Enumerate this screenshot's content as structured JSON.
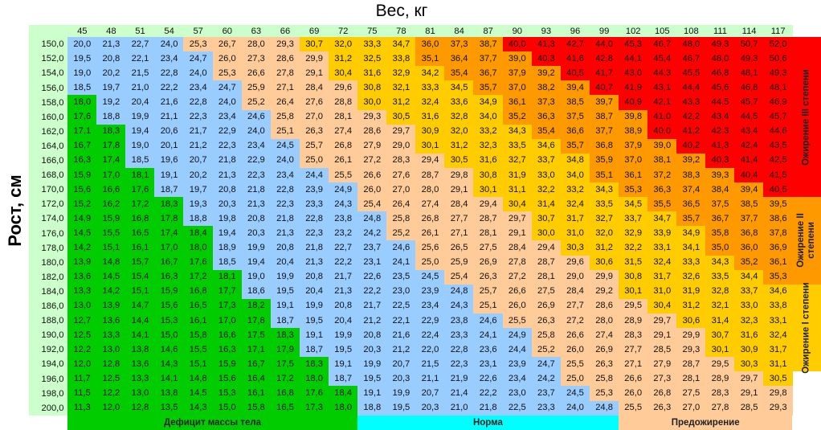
{
  "chart_data": {
    "type": "heatmap",
    "title": "",
    "xlabel": "Вес, кг",
    "ylabel": "Рост, см",
    "x": [
      "45",
      "48",
      "51",
      "54",
      "57",
      "60",
      "63",
      "66",
      "69",
      "72",
      "75",
      "78",
      "81",
      "84",
      "87",
      "90",
      "93",
      "96",
      "99",
      "102",
      "105",
      "108",
      "111",
      "114",
      "117"
    ],
    "y": [
      "150,0",
      "152,0",
      "154,0",
      "156,0",
      "158,0",
      "160,0",
      "162,0",
      "164,0",
      "166,0",
      "168,0",
      "170,0",
      "172,0",
      "174,0",
      "176,0",
      "178,0",
      "180,0",
      "182,0",
      "184,0",
      "186,0",
      "188,0",
      "190,0",
      "192,0",
      "194,0",
      "196,0",
      "198,0",
      "200,0"
    ],
    "values": [
      [
        "20,0",
        "21,3",
        "22,7",
        "24,0",
        "25,3",
        "26,7",
        "28,0",
        "29,3",
        "30,7",
        "32,0",
        "33,3",
        "34,7",
        "36,0",
        "37,3",
        "38,7",
        "40,0",
        "41,3",
        "42,7",
        "44,0",
        "45,3",
        "46,7",
        "48,0",
        "49,3",
        "50,7",
        "52,0"
      ],
      [
        "19,5",
        "20,8",
        "22,1",
        "23,4",
        "24,7",
        "26,0",
        "27,3",
        "28,6",
        "29,9",
        "31,2",
        "32,5",
        "33,8",
        "35,1",
        "36,4",
        "37,7",
        "39,0",
        "40,3",
        "41,6",
        "42,8",
        "44,1",
        "45,4",
        "46,7",
        "48,0",
        "49,3",
        "50,6"
      ],
      [
        "19,0",
        "20,2",
        "21,5",
        "22,8",
        "24,0",
        "25,3",
        "26,6",
        "27,8",
        "29,1",
        "30,4",
        "31,6",
        "32,9",
        "34,2",
        "35,4",
        "36,7",
        "37,9",
        "39,2",
        "40,5",
        "41,7",
        "43,0",
        "44,3",
        "45,5",
        "46,8",
        "48,1",
        "49,3"
      ],
      [
        "18,5",
        "19,7",
        "21,0",
        "22,2",
        "23,4",
        "24,7",
        "25,9",
        "27,1",
        "28,4",
        "29,6",
        "30,8",
        "32,1",
        "33,3",
        "34,5",
        "35,7",
        "37,0",
        "38,2",
        "39,4",
        "40,7",
        "41,9",
        "43,1",
        "44,4",
        "45,6",
        "46,8",
        "48,1"
      ],
      [
        "18,0",
        "19,2",
        "20,4",
        "21,6",
        "22,8",
        "24,0",
        "25,2",
        "26,4",
        "27,6",
        "28,8",
        "30,0",
        "31,2",
        "32,4",
        "33,6",
        "34,9",
        "36,1",
        "37,3",
        "38,5",
        "39,7",
        "40,9",
        "42,1",
        "43,3",
        "44,5",
        "45,7",
        "46,9"
      ],
      [
        "17,6",
        "18,8",
        "19,9",
        "21,1",
        "22,3",
        "23,4",
        "24,6",
        "25,8",
        "27,0",
        "28,1",
        "29,3",
        "30,5",
        "31,6",
        "32,8",
        "34,0",
        "35,2",
        "36,3",
        "37,5",
        "38,7",
        "39,8",
        "41,0",
        "42,2",
        "43,4",
        "44,5",
        "45,7"
      ],
      [
        "17,1",
        "18,3",
        "19,4",
        "20,6",
        "21,7",
        "22,9",
        "24,0",
        "25,1",
        "26,3",
        "27,4",
        "28,6",
        "29,7",
        "30,9",
        "32,0",
        "33,2",
        "34,3",
        "35,4",
        "36,6",
        "37,7",
        "38,9",
        "40,0",
        "41,2",
        "42,3",
        "43,4",
        "44,6"
      ],
      [
        "16,7",
        "17,8",
        "19,0",
        "20,1",
        "21,2",
        "22,3",
        "23,4",
        "24,5",
        "25,7",
        "26,8",
        "27,9",
        "29,0",
        "30,1",
        "31,2",
        "32,3",
        "33,5",
        "34,6",
        "35,7",
        "36,8",
        "37,9",
        "39,0",
        "40,2",
        "41,3",
        "42,4",
        "43,5"
      ],
      [
        "16,3",
        "17,4",
        "18,5",
        "19,6",
        "20,7",
        "21,8",
        "22,9",
        "24,0",
        "25,0",
        "26,1",
        "27,2",
        "28,3",
        "29,4",
        "30,5",
        "31,6",
        "32,7",
        "33,7",
        "34,8",
        "35,9",
        "37,0",
        "38,1",
        "39,2",
        "40,3",
        "41,4",
        "42,5"
      ],
      [
        "15,9",
        "17,0",
        "18,1",
        "19,1",
        "20,2",
        "21,3",
        "22,3",
        "23,4",
        "24,4",
        "25,5",
        "26,6",
        "27,6",
        "28,7",
        "29,8",
        "30,8",
        "31,9",
        "33,0",
        "34,0",
        "35,1",
        "36,1",
        "37,2",
        "38,3",
        "39,3",
        "40,4",
        "41,5"
      ],
      [
        "15,6",
        "16,6",
        "17,6",
        "18,7",
        "19,7",
        "20,8",
        "21,8",
        "22,8",
        "23,9",
        "24,9",
        "26,0",
        "27,0",
        "28,0",
        "29,1",
        "30,1",
        "31,1",
        "32,2",
        "33,2",
        "34,3",
        "35,3",
        "36,3",
        "37,4",
        "38,4",
        "39,4",
        "40,5"
      ],
      [
        "15,2",
        "16,2",
        "17,2",
        "18,3",
        "19,3",
        "20,3",
        "21,3",
        "22,3",
        "23,3",
        "24,3",
        "25,4",
        "26,4",
        "27,4",
        "28,4",
        "29,4",
        "30,4",
        "31,4",
        "32,4",
        "33,5",
        "34,5",
        "35,5",
        "36,5",
        "37,5",
        "38,5",
        "39,5"
      ],
      [
        "14,9",
        "15,9",
        "16,8",
        "17,8",
        "18,8",
        "19,8",
        "20,8",
        "21,8",
        "22,8",
        "23,8",
        "24,8",
        "25,8",
        "26,8",
        "27,7",
        "28,7",
        "29,7",
        "30,7",
        "31,7",
        "32,7",
        "33,7",
        "34,7",
        "35,7",
        "36,7",
        "37,7",
        "38,6"
      ],
      [
        "14,5",
        "15,5",
        "16,5",
        "17,4",
        "18,4",
        "19,4",
        "20,3",
        "21,3",
        "22,3",
        "23,2",
        "24,2",
        "25,2",
        "26,1",
        "27,1",
        "28,1",
        "29,1",
        "30,0",
        "31,0",
        "32,0",
        "32,9",
        "33,9",
        "34,9",
        "35,8",
        "36,8",
        "37,8"
      ],
      [
        "14,2",
        "15,1",
        "16,1",
        "17,0",
        "18,0",
        "18,9",
        "19,9",
        "20,8",
        "21,8",
        "22,7",
        "23,7",
        "24,6",
        "25,6",
        "26,5",
        "27,5",
        "28,4",
        "29,4",
        "30,3",
        "31,2",
        "32,2",
        "33,1",
        "34,1",
        "35,0",
        "36,0",
        "36,9"
      ],
      [
        "13,9",
        "14,8",
        "15,7",
        "16,7",
        "17,6",
        "18,5",
        "19,4",
        "20,4",
        "21,3",
        "22,2",
        "23,1",
        "24,1",
        "25,0",
        "25,9",
        "26,9",
        "27,8",
        "28,7",
        "29,6",
        "30,6",
        "31,5",
        "32,4",
        "33,3",
        "34,3",
        "35,2",
        "36,1"
      ],
      [
        "13,6",
        "14,5",
        "15,4",
        "16,3",
        "17,2",
        "18,1",
        "19,0",
        "19,9",
        "20,8",
        "21,7",
        "22,6",
        "23,5",
        "24,5",
        "25,4",
        "26,3",
        "27,2",
        "28,1",
        "29,0",
        "29,9",
        "30,8",
        "31,7",
        "32,6",
        "33,5",
        "34,4",
        "35,3"
      ],
      [
        "13,3",
        "14,2",
        "15,1",
        "15,9",
        "16,8",
        "17,7",
        "18,6",
        "19,5",
        "20,4",
        "21,3",
        "22,2",
        "23,0",
        "23,9",
        "24,8",
        "25,7",
        "26,6",
        "27,5",
        "28,4",
        "29,2",
        "30,1",
        "31,0",
        "31,9",
        "32,8",
        "33,7",
        "34,6"
      ],
      [
        "13,0",
        "13,9",
        "14,7",
        "15,6",
        "16,5",
        "17,3",
        "18,2",
        "19,1",
        "19,9",
        "20,8",
        "21,7",
        "22,5",
        "23,4",
        "24,3",
        "25,1",
        "26,0",
        "26,9",
        "27,7",
        "28,6",
        "29,5",
        "30,4",
        "31,2",
        "32,1",
        "33,0",
        "33,8"
      ],
      [
        "12,7",
        "13,6",
        "14,4",
        "15,3",
        "16,1",
        "17,0",
        "17,8",
        "18,7",
        "19,5",
        "20,4",
        "21,2",
        "22,1",
        "22,9",
        "23,8",
        "24,6",
        "25,5",
        "26,3",
        "27,2",
        "28,0",
        "28,9",
        "29,7",
        "30,6",
        "31,4",
        "32,3",
        "33,1"
      ],
      [
        "12,5",
        "13,3",
        "14,1",
        "15,0",
        "15,8",
        "16,6",
        "17,5",
        "18,3",
        "19,1",
        "19,9",
        "20,8",
        "21,6",
        "22,4",
        "23,3",
        "24,1",
        "24,9",
        "25,8",
        "26,6",
        "27,4",
        "28,3",
        "29,1",
        "29,9",
        "30,7",
        "31,6",
        "32,4"
      ],
      [
        "12,2",
        "13,0",
        "13,8",
        "14,6",
        "15,5",
        "16,3",
        "17,1",
        "17,9",
        "18,7",
        "19,5",
        "20,3",
        "21,2",
        "22,0",
        "22,8",
        "23,6",
        "24,4",
        "25,2",
        "26,0",
        "26,9",
        "27,7",
        "28,5",
        "29,3",
        "30,1",
        "30,9",
        "31,7"
      ],
      [
        "12,0",
        "12,8",
        "13,6",
        "14,3",
        "15,1",
        "15,9",
        "16,7",
        "17,5",
        "18,3",
        "19,1",
        "19,9",
        "20,7",
        "21,5",
        "22,3",
        "23,1",
        "23,9",
        "24,7",
        "25,5",
        "26,3",
        "27,1",
        "27,9",
        "28,7",
        "29,5",
        "30,3",
        "31,1"
      ],
      [
        "11,7",
        "12,5",
        "13,3",
        "14,1",
        "14,8",
        "15,6",
        "16,4",
        "17,2",
        "18,0",
        "18,7",
        "19,5",
        "20,3",
        "21,1",
        "21,9",
        "22,6",
        "23,4",
        "24,2",
        "25,0",
        "25,8",
        "26,6",
        "27,3",
        "28,1",
        "28,9",
        "29,7",
        "30,5"
      ],
      [
        "11,5",
        "12,2",
        "13,0",
        "13,8",
        "14,5",
        "15,3",
        "16,1",
        "16,8",
        "17,6",
        "18,4",
        "19,1",
        "19,9",
        "20,7",
        "21,4",
        "22,2",
        "23,0",
        "23,7",
        "24,5",
        "25,3",
        "26,0",
        "26,8",
        "27,5",
        "28,3",
        "29,1",
        "29,8"
      ],
      [
        "11,3",
        "12,0",
        "12,8",
        "13,5",
        "14,3",
        "15,0",
        "15,8",
        "16,5",
        "17,3",
        "18,0",
        "18,8",
        "19,5",
        "20,3",
        "21,0",
        "21,8",
        "22,5",
        "23,3",
        "24,0",
        "24,8",
        "25,5",
        "26,3",
        "27,0",
        "27,8",
        "28,5",
        "29,3"
      ]
    ],
    "categories_legend": [
      {
        "label": "Дефицит массы тела",
        "color": "#00cc00",
        "max": 18.5
      },
      {
        "label": "Норма",
        "color": "#99ccff",
        "max": 25.0
      },
      {
        "label": "Предожирение",
        "color": "#ffcc99",
        "max": 30.0
      },
      {
        "label": "Ожирение I степени",
        "color": "#ffcc00",
        "max": 35.0
      },
      {
        "label": "Ожирение II степени",
        "color": "#ff9900",
        "max": 40.0
      },
      {
        "label": "Ожирение III степени",
        "color": "#ff0000",
        "max": 999
      }
    ],
    "zone_bars": {
      "bottom_colors": {
        "deficit": "#00cc00",
        "norm": "#00ffff",
        "pre": "#ffcc99"
      },
      "side_colors": {
        "ob3": "#ff0000",
        "ob2": "#ff9900",
        "ob1": "#ffcc00"
      }
    },
    "header_color": "#ccffcc"
  }
}
